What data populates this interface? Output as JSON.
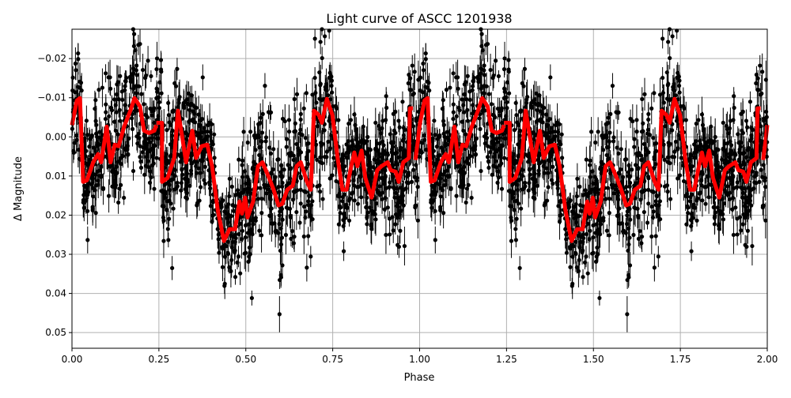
{
  "chart_data": {
    "type": "scatter",
    "title": "Light curve of ASCC 1201938",
    "xlabel": "Phase",
    "ylabel": "Δ Magnitude",
    "xlim": [
      0,
      2
    ],
    "ylim": [
      -0.0275,
      0.054
    ],
    "y_inverted": true,
    "grid": true,
    "x_ticks": [
      0,
      0.25,
      0.5,
      0.75,
      1.0,
      1.25,
      1.5,
      1.75,
      2.0
    ],
    "x_tick_labels": [
      "0.00",
      "0.25",
      "0.50",
      "0.75",
      "1.00",
      "1.25",
      "1.50",
      "1.75",
      "2.00"
    ],
    "y_ticks": [
      -0.02,
      -0.01,
      0.0,
      0.01,
      0.02,
      0.03,
      0.04,
      0.05
    ],
    "y_tick_labels": [
      "−0.02",
      "−0.01",
      "0.00",
      "0.01",
      "0.02",
      "0.03",
      "0.04",
      "0.05"
    ],
    "colors": {
      "points": "#000000",
      "model": "#ff0000",
      "grid": "#b0b0b0"
    },
    "model_period_segments": [
      [
        [
          0,
          -0.003
        ],
        [
          0.014,
          -0.0093
        ],
        [
          0.023,
          -0.0099
        ],
        [
          0.032,
          0.0115
        ],
        [
          0.043,
          0.0111
        ],
        [
          0.061,
          0.0065
        ],
        [
          0.075,
          0.0044
        ],
        [
          0.084,
          0.0065
        ],
        [
          0.1,
          -0.0026
        ],
        [
          0.111,
          0.0065
        ],
        [
          0.123,
          0.002
        ],
        [
          0.134,
          0.0024
        ],
        [
          0.15,
          -0.0026
        ],
        [
          0.168,
          -0.0067
        ],
        [
          0.18,
          -0.0099
        ],
        [
          0.196,
          -0.0077
        ],
        [
          0.207,
          -0.0016
        ],
        [
          0.221,
          -0.001
        ],
        [
          0.237,
          -0.0016
        ],
        [
          0.243,
          -0.003
        ]
      ],
      [
        [
          0.243,
          -0.0036
        ],
        [
          0.259,
          -0.0036
        ],
        [
          0.259,
          0.0115
        ],
        [
          0.275,
          0.0105
        ],
        [
          0.294,
          0.0054
        ],
        [
          0.305,
          -0.0067
        ],
        [
          0.316,
          -0.0006
        ],
        [
          0.328,
          0.0065
        ],
        [
          0.346,
          -0.0016
        ],
        [
          0.357,
          0.0054
        ],
        [
          0.373,
          0.0024
        ],
        [
          0.389,
          0.002
        ],
        [
          0.403,
          0.0075
        ],
        [
          0.419,
          0.0186
        ],
        [
          0.437,
          0.0266
        ],
        [
          0.453,
          0.0236
        ],
        [
          0.469,
          0.0236
        ],
        [
          0.482,
          0.0165
        ],
        [
          0.489,
          0.0196
        ],
        [
          0.498,
          0.0155
        ],
        [
          0.505,
          0.0206
        ],
        [
          0.521,
          0.0165
        ],
        [
          0.535,
          0.0075
        ],
        [
          0.548,
          0.0065
        ],
        [
          0.567,
          0.0105
        ],
        [
          0.58,
          0.0135
        ],
        [
          0.594,
          0.0175
        ],
        [
          0.605,
          0.0171
        ],
        [
          0.619,
          0.0135
        ],
        [
          0.635,
          0.0125
        ],
        [
          0.646,
          0.0075
        ],
        [
          0.658,
          0.0065
        ],
        [
          0.676,
          0.0115
        ],
        [
          0.687,
          0.0135
        ],
        [
          0.696,
          -0.0067
        ],
        [
          0.71,
          -0.0056
        ],
        [
          0.719,
          -0.0036
        ],
        [
          0.733,
          -0.0097
        ],
        [
          0.749,
          -0.0056
        ],
        [
          0.764,
          0.0054
        ],
        [
          0.778,
          0.0135
        ],
        [
          0.79,
          0.0135
        ],
        [
          0.801,
          0.0085
        ],
        [
          0.812,
          0.004
        ],
        [
          0.821,
          0.0075
        ],
        [
          0.833,
          0.0035
        ],
        [
          0.844,
          0.0105
        ],
        [
          0.862,
          0.0155
        ],
        [
          0.878,
          0.0085
        ],
        [
          0.89,
          0.0075
        ],
        [
          0.908,
          0.0065
        ],
        [
          0.917,
          0.0085
        ],
        [
          0.931,
          0.0089
        ],
        [
          0.94,
          0.0115
        ],
        [
          0.953,
          0.0065
        ],
        [
          0.969,
          0.0054
        ],
        [
          0.972,
          -0.0073
        ],
        [
          0.981,
          -0.0073
        ]
      ],
      [
        [
          0.988,
          0.0059
        ],
        [
          0.995,
          0.001
        ],
        [
          1.0,
          -0.003
        ]
      ]
    ]
  }
}
